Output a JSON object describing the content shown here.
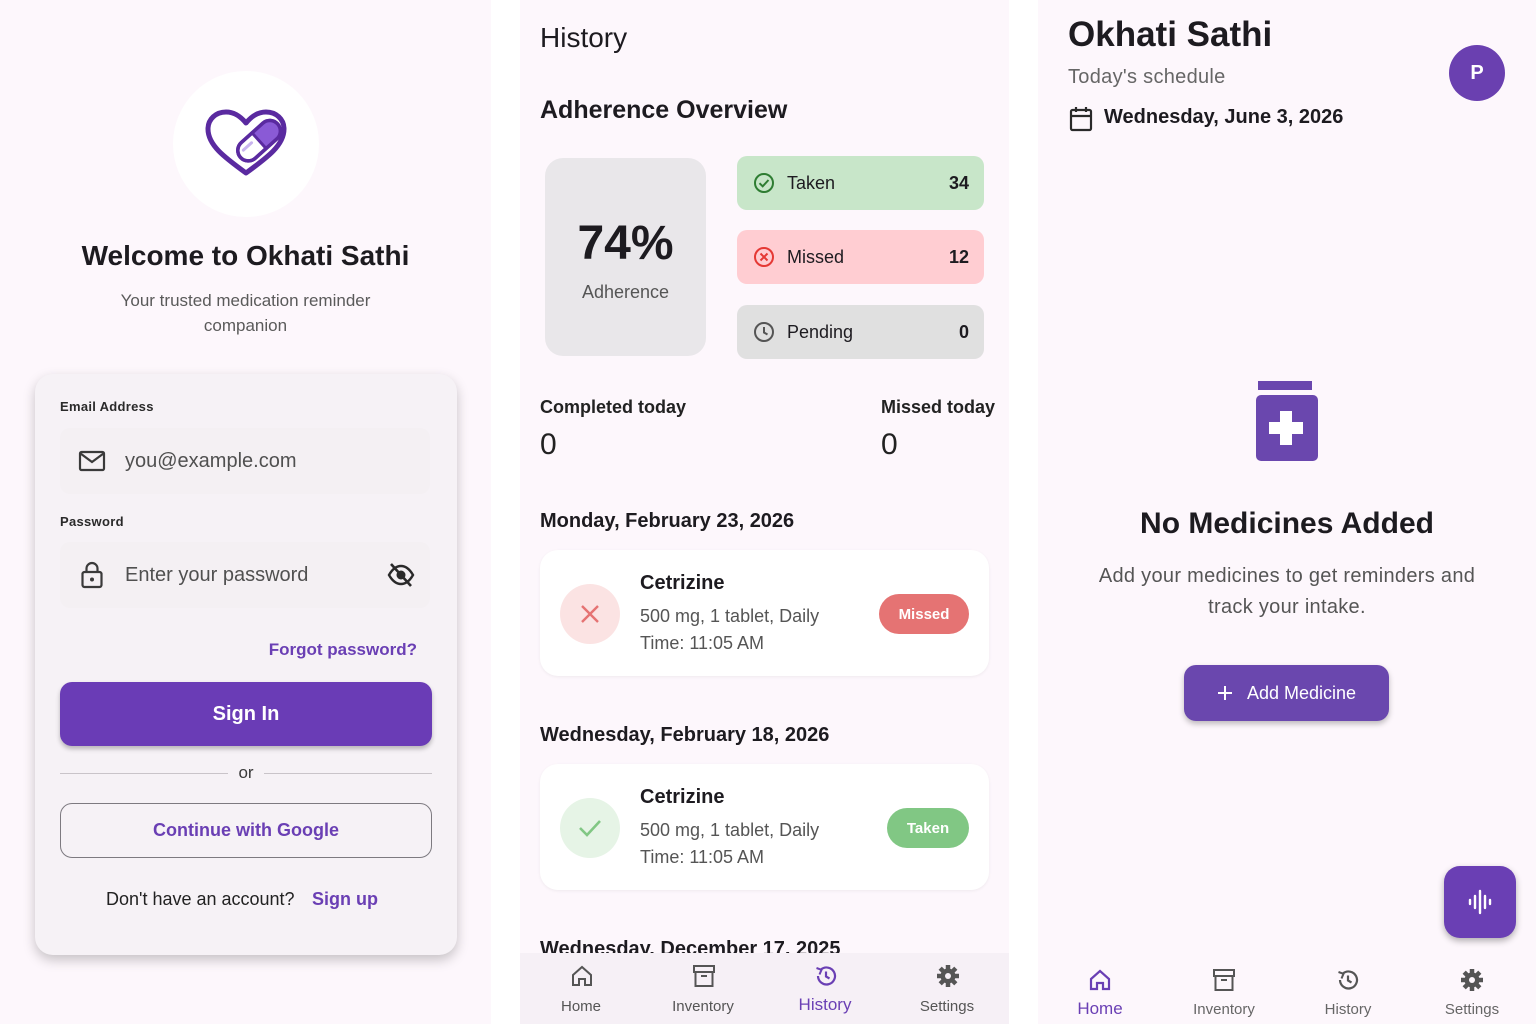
{
  "login": {
    "welcome": "Welcome to Okhati Sathi",
    "tagline": "Your trusted medication reminder companion",
    "email_label": "Email Address",
    "email_placeholder": "you@example.com",
    "password_label": "Password",
    "password_placeholder": "Enter your password",
    "forgot": "Forgot password?",
    "sign_in": "Sign In",
    "or": "or",
    "google": "Continue with Google",
    "no_account": "Don't have an account?",
    "sign_up": "Sign up"
  },
  "history": {
    "title": "History",
    "overview_title": "Adherence Overview",
    "percent": "74%",
    "percent_label": "Adherence",
    "stats": [
      {
        "label": "Taken",
        "value": "34",
        "color": "#c8e6c9"
      },
      {
        "label": "Missed",
        "value": "12",
        "color": "#ffcdd2"
      },
      {
        "label": "Pending",
        "value": "0",
        "color": "#e0e0e0"
      }
    ],
    "completed_label": "Completed today",
    "completed_value": "0",
    "missed_label": "Missed today",
    "missed_value": "0",
    "groups": [
      {
        "date": "Monday, February 23, 2026",
        "name": "Cetrizine",
        "dose": "500 mg, 1 tablet, Daily",
        "time": "Time: 11:05 AM",
        "status": "Missed",
        "status_color": "#e57373"
      },
      {
        "date": "Wednesday, February 18, 2026",
        "name": "Cetrizine",
        "dose": "500 mg, 1 tablet, Daily",
        "time": "Time: 11:05 AM",
        "status": "Taken",
        "status_color": "#81c784"
      }
    ],
    "next_date": "Wednesday, December 17, 2025",
    "nav": {
      "home": "Home",
      "inventory": "Inventory",
      "history": "History",
      "settings": "Settings"
    }
  },
  "home": {
    "app_title": "Okhati Sathi",
    "subtitle": "Today's schedule",
    "avatar": "P",
    "date": "Wednesday, June 3, 2026",
    "empty_title": "No Medicines Added",
    "empty_desc": "Add your medicines to get reminders and track your intake.",
    "add_button": "Add Medicine",
    "nav": {
      "home": "Home",
      "inventory": "Inventory",
      "history": "History",
      "settings": "Settings"
    }
  },
  "colors": {
    "accent": "#6a3cb6",
    "background": "#fdf7fc"
  }
}
